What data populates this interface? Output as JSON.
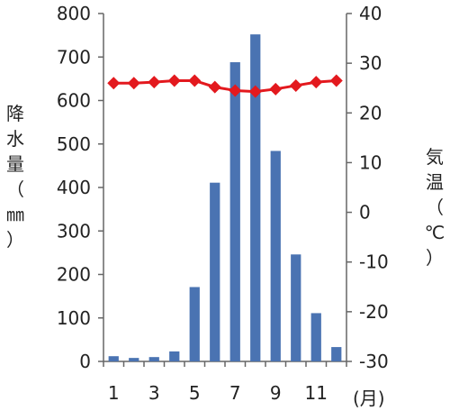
{
  "chart_data": {
    "type": "bar+line",
    "categories": [
      1,
      2,
      3,
      4,
      5,
      6,
      7,
      8,
      9,
      10,
      11,
      12
    ],
    "x_tick_labels": [
      "1",
      "3",
      "5",
      "7",
      "9",
      "11"
    ],
    "x_tick_months": [
      1,
      3,
      5,
      7,
      9,
      11
    ],
    "xlabel": "(月)",
    "series": [
      {
        "kind": "bar",
        "axis": "left",
        "color": "#4a73b2",
        "values": [
          12,
          8,
          10,
          23,
          171,
          411,
          688,
          752,
          484,
          246,
          111,
          33
        ]
      },
      {
        "kind": "line",
        "axis": "right",
        "color": "#e3191e",
        "marker": "diamond",
        "values": [
          26,
          26,
          26.2,
          26.5,
          26.5,
          25.2,
          24.5,
          24.3,
          24.8,
          25.5,
          26.2,
          26.5
        ]
      }
    ],
    "left_axis": {
      "label_chars": [
        "降",
        "水",
        "量",
        "（",
        "㎜",
        "）"
      ],
      "ylim": [
        0,
        800
      ],
      "ticks": [
        0,
        100,
        200,
        300,
        400,
        500,
        600,
        700,
        800
      ]
    },
    "right_axis": {
      "label_chars": [
        "気",
        "温",
        "（",
        "℃",
        "）"
      ],
      "ylim": [
        -30,
        40
      ],
      "ticks": [
        -30,
        -20,
        -10,
        0,
        10,
        20,
        30,
        40
      ]
    },
    "grid": false
  }
}
